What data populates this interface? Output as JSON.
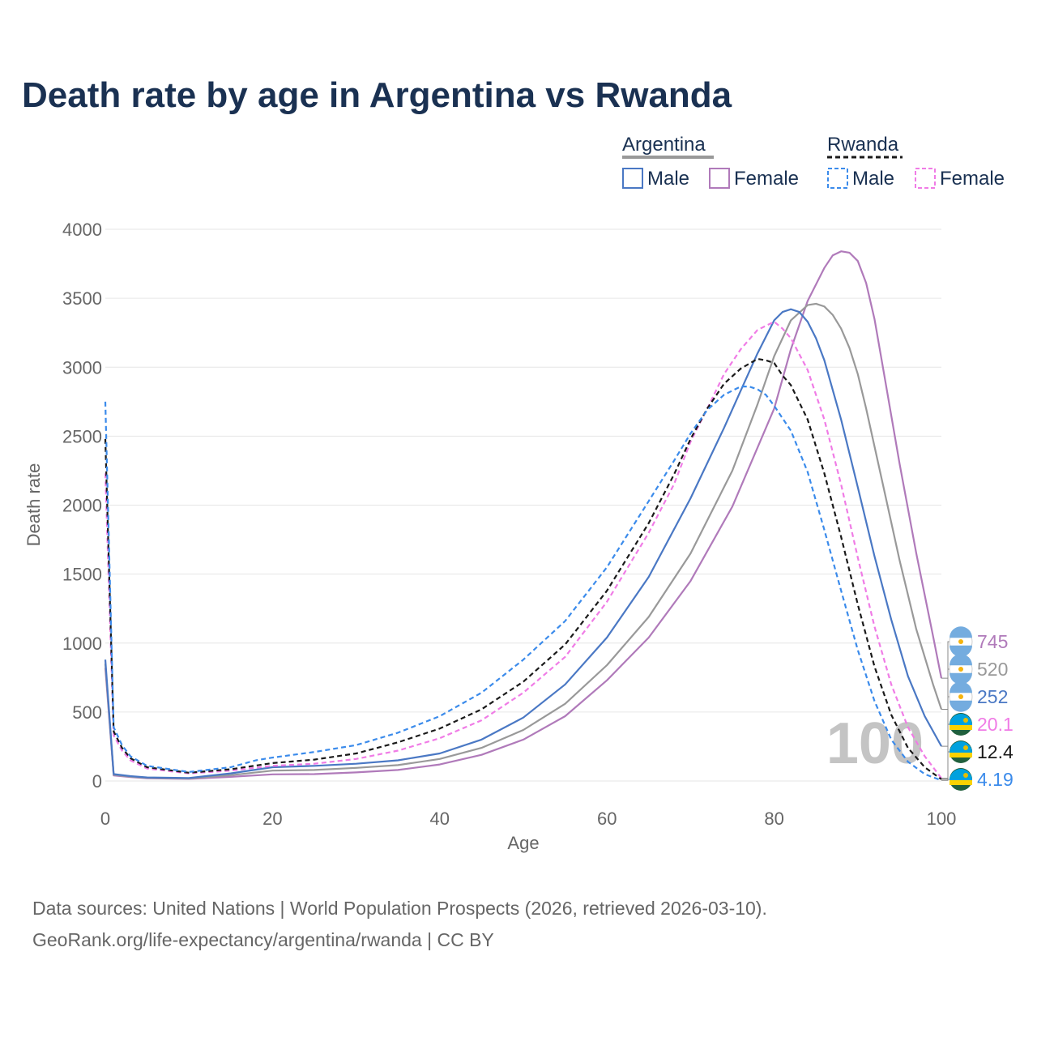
{
  "chart_data": {
    "type": "line",
    "title": "Death rate by age in Argentina vs Rwanda",
    "xlabel": "Age",
    "ylabel": "Death rate",
    "xlim": [
      0,
      100
    ],
    "ylim": [
      0,
      4000
    ],
    "x_ticks": [
      0,
      20,
      40,
      60,
      80,
      100
    ],
    "y_ticks": [
      0,
      500,
      1000,
      1500,
      2000,
      2500,
      3000,
      3500,
      4000
    ],
    "grid": true,
    "legend": {
      "groups": [
        {
          "name": "Argentina",
          "style": "solid",
          "items": [
            "Male",
            "Female"
          ]
        },
        {
          "name": "Rwanda",
          "style": "dashed",
          "items": [
            "Male",
            "Female"
          ]
        }
      ],
      "placement": "top-right"
    },
    "year_watermark": "100",
    "series": [
      {
        "name": "Argentina Female",
        "country": "Argentina",
        "color": "#b07aba",
        "dash": false,
        "end_label": "745",
        "points": [
          [
            0,
            820
          ],
          [
            1,
            40
          ],
          [
            3,
            28
          ],
          [
            5,
            20
          ],
          [
            10,
            15
          ],
          [
            15,
            30
          ],
          [
            20,
            48
          ],
          [
            25,
            50
          ],
          [
            30,
            62
          ],
          [
            35,
            80
          ],
          [
            40,
            120
          ],
          [
            45,
            190
          ],
          [
            50,
            300
          ],
          [
            55,
            470
          ],
          [
            60,
            730
          ],
          [
            65,
            1040
          ],
          [
            70,
            1450
          ],
          [
            75,
            1990
          ],
          [
            80,
            2700
          ],
          [
            82,
            3130
          ],
          [
            84,
            3480
          ],
          [
            86,
            3720
          ],
          [
            87,
            3810
          ],
          [
            88,
            3840
          ],
          [
            89,
            3830
          ],
          [
            90,
            3770
          ],
          [
            91,
            3610
          ],
          [
            92,
            3350
          ],
          [
            93,
            3000
          ],
          [
            95,
            2300
          ],
          [
            97,
            1650
          ],
          [
            99,
            1050
          ],
          [
            100,
            745
          ]
        ]
      },
      {
        "name": "Argentina Total",
        "country": "Argentina",
        "color": "#999999",
        "dash": false,
        "end_label": "520",
        "points": [
          [
            0,
            850
          ],
          [
            1,
            45
          ],
          [
            3,
            32
          ],
          [
            5,
            23
          ],
          [
            10,
            18
          ],
          [
            15,
            42
          ],
          [
            20,
            75
          ],
          [
            25,
            80
          ],
          [
            30,
            95
          ],
          [
            35,
            115
          ],
          [
            40,
            160
          ],
          [
            45,
            240
          ],
          [
            50,
            370
          ],
          [
            55,
            560
          ],
          [
            60,
            840
          ],
          [
            65,
            1190
          ],
          [
            70,
            1650
          ],
          [
            75,
            2250
          ],
          [
            78,
            2730
          ],
          [
            80,
            3080
          ],
          [
            82,
            3340
          ],
          [
            84,
            3450
          ],
          [
            85,
            3460
          ],
          [
            86,
            3440
          ],
          [
            87,
            3380
          ],
          [
            88,
            3280
          ],
          [
            89,
            3140
          ],
          [
            90,
            2950
          ],
          [
            91,
            2700
          ],
          [
            93,
            2150
          ],
          [
            95,
            1600
          ],
          [
            97,
            1100
          ],
          [
            99,
            700
          ],
          [
            100,
            520
          ]
        ]
      },
      {
        "name": "Argentina Male",
        "country": "Argentina",
        "color": "#4a78c4",
        "dash": false,
        "end_label": "252",
        "points": [
          [
            0,
            880
          ],
          [
            1,
            50
          ],
          [
            3,
            35
          ],
          [
            5,
            26
          ],
          [
            10,
            22
          ],
          [
            15,
            55
          ],
          [
            20,
            100
          ],
          [
            25,
            110
          ],
          [
            30,
            125
          ],
          [
            35,
            150
          ],
          [
            40,
            200
          ],
          [
            45,
            300
          ],
          [
            50,
            460
          ],
          [
            55,
            700
          ],
          [
            60,
            1040
          ],
          [
            65,
            1480
          ],
          [
            70,
            2050
          ],
          [
            74,
            2560
          ],
          [
            76,
            2830
          ],
          [
            78,
            3100
          ],
          [
            80,
            3340
          ],
          [
            81,
            3400
          ],
          [
            82,
            3420
          ],
          [
            83,
            3400
          ],
          [
            84,
            3330
          ],
          [
            85,
            3210
          ],
          [
            86,
            3050
          ],
          [
            88,
            2620
          ],
          [
            90,
            2130
          ],
          [
            92,
            1630
          ],
          [
            94,
            1170
          ],
          [
            96,
            760
          ],
          [
            98,
            470
          ],
          [
            100,
            252
          ]
        ]
      },
      {
        "name": "Rwanda Female",
        "country": "Rwanda",
        "color": "#f07ce6",
        "dash": true,
        "end_label": "20.1",
        "points": [
          [
            0,
            2230
          ],
          [
            1,
            330
          ],
          [
            2,
            220
          ],
          [
            3,
            150
          ],
          [
            5,
            90
          ],
          [
            10,
            55
          ],
          [
            15,
            75
          ],
          [
            20,
            110
          ],
          [
            25,
            125
          ],
          [
            30,
            160
          ],
          [
            35,
            220
          ],
          [
            40,
            310
          ],
          [
            45,
            440
          ],
          [
            50,
            640
          ],
          [
            55,
            900
          ],
          [
            60,
            1300
          ],
          [
            65,
            1800
          ],
          [
            68,
            2150
          ],
          [
            70,
            2460
          ],
          [
            72,
            2700
          ],
          [
            74,
            2950
          ],
          [
            76,
            3130
          ],
          [
            78,
            3270
          ],
          [
            80,
            3330
          ],
          [
            81,
            3280
          ],
          [
            82,
            3210
          ],
          [
            84,
            2980
          ],
          [
            86,
            2620
          ],
          [
            88,
            2150
          ],
          [
            90,
            1620
          ],
          [
            92,
            1120
          ],
          [
            94,
            700
          ],
          [
            96,
            390
          ],
          [
            98,
            180
          ],
          [
            100,
            20.1
          ]
        ]
      },
      {
        "name": "Rwanda Total",
        "country": "Rwanda",
        "color": "#1a1a1a",
        "dash": true,
        "end_label": "12.4",
        "points": [
          [
            0,
            2480
          ],
          [
            1,
            360
          ],
          [
            2,
            240
          ],
          [
            3,
            165
          ],
          [
            5,
            100
          ],
          [
            10,
            60
          ],
          [
            15,
            85
          ],
          [
            20,
            130
          ],
          [
            25,
            155
          ],
          [
            30,
            200
          ],
          [
            35,
            280
          ],
          [
            40,
            380
          ],
          [
            45,
            520
          ],
          [
            50,
            720
          ],
          [
            55,
            990
          ],
          [
            60,
            1380
          ],
          [
            65,
            1870
          ],
          [
            68,
            2220
          ],
          [
            70,
            2480
          ],
          [
            72,
            2700
          ],
          [
            74,
            2880
          ],
          [
            76,
            2990
          ],
          [
            78,
            3060
          ],
          [
            79,
            3050
          ],
          [
            80,
            3030
          ],
          [
            81,
            2940
          ],
          [
            82,
            2870
          ],
          [
            84,
            2620
          ],
          [
            86,
            2230
          ],
          [
            88,
            1770
          ],
          [
            90,
            1280
          ],
          [
            92,
            830
          ],
          [
            94,
            480
          ],
          [
            96,
            240
          ],
          [
            98,
            100
          ],
          [
            100,
            12.4
          ]
        ]
      },
      {
        "name": "Rwanda Male",
        "country": "Rwanda",
        "color": "#3b8beb",
        "dash": true,
        "end_label": "4.19",
        "points": [
          [
            0,
            2750
          ],
          [
            1,
            390
          ],
          [
            2,
            260
          ],
          [
            3,
            180
          ],
          [
            5,
            110
          ],
          [
            10,
            65
          ],
          [
            15,
            100
          ],
          [
            18,
            150
          ],
          [
            20,
            170
          ],
          [
            25,
            210
          ],
          [
            30,
            260
          ],
          [
            35,
            350
          ],
          [
            40,
            470
          ],
          [
            45,
            640
          ],
          [
            50,
            880
          ],
          [
            55,
            1160
          ],
          [
            60,
            1550
          ],
          [
            65,
            2030
          ],
          [
            68,
            2320
          ],
          [
            70,
            2520
          ],
          [
            72,
            2690
          ],
          [
            74,
            2800
          ],
          [
            76,
            2860
          ],
          [
            77,
            2860
          ],
          [
            78,
            2840
          ],
          [
            79,
            2800
          ],
          [
            80,
            2720
          ],
          [
            82,
            2540
          ],
          [
            84,
            2240
          ],
          [
            86,
            1820
          ],
          [
            88,
            1380
          ],
          [
            90,
            950
          ],
          [
            92,
            580
          ],
          [
            94,
            300
          ],
          [
            96,
            140
          ],
          [
            98,
            50
          ],
          [
            100,
            4.19
          ]
        ]
      }
    ]
  },
  "footer": {
    "line1": "Data sources: United Nations | World Population Prospects (2026, retrieved 2026-03-10).",
    "line2": "GeoRank.org/life-expectancy/argentina/rwanda | CC BY"
  }
}
